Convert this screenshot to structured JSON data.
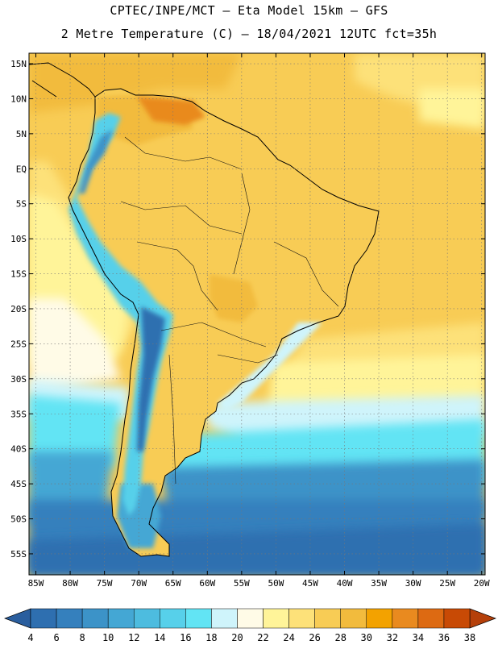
{
  "header": {
    "line1": "CPTEC/INPE/MCT –  Eta Model 15km – GFS",
    "line2": "2 Metre Temperature (C) – 18/04/2021 12UTC fct=35h"
  },
  "map": {
    "lat_labels": [
      "15N",
      "10N",
      "5N",
      "EQ",
      "5S",
      "10S",
      "15S",
      "20S",
      "25S",
      "30S",
      "35S",
      "40S",
      "45S",
      "50S",
      "55S"
    ],
    "lon_labels": [
      "85W",
      "80W",
      "75W",
      "70W",
      "65W",
      "60W",
      "55W",
      "50W",
      "45W",
      "40W",
      "35W",
      "30W",
      "25W",
      "20W"
    ],
    "lat_values": [
      15,
      10,
      5,
      0,
      -5,
      -10,
      -15,
      -20,
      -25,
      -30,
      -35,
      -40,
      -45,
      -50,
      -55
    ],
    "lon_values": [
      -85,
      -80,
      -75,
      -70,
      -65,
      -60,
      -55,
      -50,
      -45,
      -40,
      -35,
      -30,
      -25,
      -20
    ],
    "lat_range": [
      -58,
      16.5
    ],
    "lon_range": [
      -86,
      -19.5
    ],
    "grid": true
  },
  "colorbar": {
    "labels": [
      "4",
      "6",
      "8",
      "10",
      "12",
      "14",
      "16",
      "18",
      "20",
      "22",
      "24",
      "26",
      "28",
      "30",
      "32",
      "34",
      "36",
      "38"
    ],
    "values": [
      4,
      6,
      8,
      10,
      12,
      14,
      16,
      18,
      20,
      22,
      24,
      26,
      28,
      30,
      32,
      34,
      36,
      38
    ],
    "colors": [
      "#2e6fb0",
      "#3580bd",
      "#3c93c8",
      "#44a7d4",
      "#4dbcdf",
      "#57d0ea",
      "#62e4f4",
      "#cff4fb",
      "#fffbe7",
      "#fff499",
      "#fde179",
      "#f8cc55",
      "#f2bb3d",
      "#f3a200",
      "#e98a1f",
      "#dd6a12",
      "#c84a05"
    ],
    "under_color": "#2a5e9e",
    "over_color": "#b5400a"
  }
}
